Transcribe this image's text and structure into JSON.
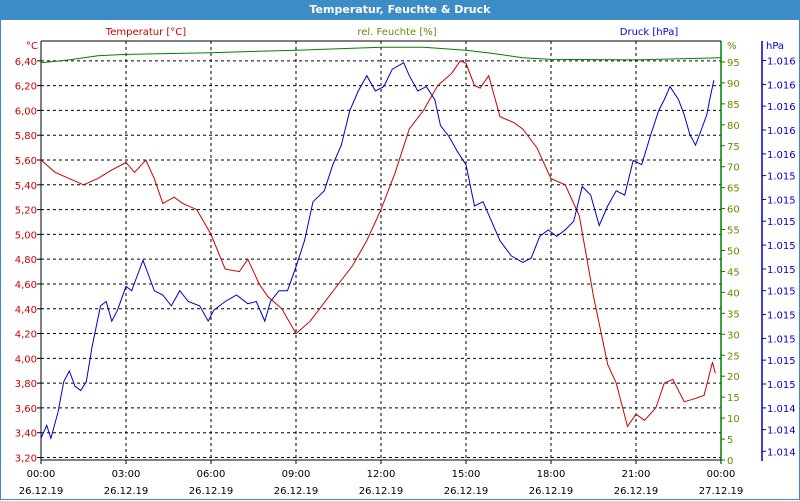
{
  "window": {
    "title": "Temperatur, Feuchte & Druck"
  },
  "colors": {
    "temp": "#cc0000",
    "hum": "#008000",
    "press": "#0000cc",
    "titlebar": "#3c8dc5"
  },
  "chart_data": {
    "type": "line",
    "title": "Temperatur, Feuchte & Druck",
    "grid": true,
    "axis_titles": {
      "temp": "Temperatur [°C]",
      "hum": "rel. Feuchte [%]",
      "press": "Druck [hPa]"
    },
    "unit_labels": {
      "temp": "°C",
      "hum": "%",
      "press": "hPa"
    },
    "xlim": [
      0,
      24
    ],
    "x_ticks": [
      {
        "h": 0,
        "time": "00:00",
        "date": "26.12.19"
      },
      {
        "h": 3,
        "time": "03:00",
        "date": "26.12.19"
      },
      {
        "h": 6,
        "time": "06:00",
        "date": "26.12.19"
      },
      {
        "h": 9,
        "time": "09:00",
        "date": "26.12.19"
      },
      {
        "h": 12,
        "time": "12:00",
        "date": "26.12.19"
      },
      {
        "h": 15,
        "time": "15:00",
        "date": "26.12.19"
      },
      {
        "h": 18,
        "time": "18:00",
        "date": "26.12.19"
      },
      {
        "h": 21,
        "time": "21:00",
        "date": "26.12.19"
      },
      {
        "h": 24,
        "time": "00:00",
        "date": "27.12.19"
      }
    ],
    "temp_axis": {
      "range": [
        3.18,
        6.56
      ],
      "ticks": [
        "6,40",
        "6,20",
        "6,00",
        "5,80",
        "5,60",
        "5,40",
        "5,20",
        "5,00",
        "4,80",
        "4,60",
        "4,40",
        "4,20",
        "4,00",
        "3,80",
        "3,60",
        "3,40",
        "3,20"
      ],
      "tick_values": [
        6.4,
        6.2,
        6.0,
        5.8,
        5.6,
        5.4,
        5.2,
        5.0,
        4.8,
        4.6,
        4.4,
        4.2,
        4.0,
        3.8,
        3.6,
        3.4,
        3.2
      ]
    },
    "hum_axis": {
      "range": [
        0,
        100
      ],
      "ticks": [
        "95",
        "90",
        "85",
        "80",
        "75",
        "70",
        "65",
        "60",
        "55",
        "50",
        "45",
        "40",
        "35",
        "30",
        "25",
        "20",
        "15",
        "10",
        "5",
        "0"
      ],
      "tick_values": [
        95,
        90,
        85,
        80,
        75,
        70,
        65,
        60,
        55,
        50,
        45,
        40,
        35,
        30,
        25,
        20,
        15,
        10,
        5,
        0
      ]
    },
    "press_axis": {
      "range": [
        1014.26,
        1016.19
      ],
      "ticks": [
        "1.016",
        "1.016",
        "1.016",
        "1.016",
        "1.016",
        "1.015",
        "1.015",
        "1.015",
        "1.015",
        "1.015",
        "1.015",
        "1.015",
        "1.015",
        "1.015",
        "1.015",
        "1.014",
        "1.014",
        "1.014"
      ],
      "tick_values": [
        1016.1,
        1015.99,
        1015.89,
        1015.78,
        1015.67,
        1015.57,
        1015.46,
        1015.36,
        1015.25,
        1015.14,
        1015.04,
        1014.93,
        1014.82,
        1014.72,
        1014.61,
        1014.5,
        1014.4,
        1014.3
      ]
    },
    "series": [
      {
        "name": "Temperatur [°C]",
        "axis": "temp",
        "x": [
          0,
          0.5,
          1,
          1.5,
          2,
          2.5,
          3,
          3.3,
          3.7,
          4,
          4.3,
          4.7,
          5,
          5.5,
          6,
          6.5,
          7,
          7.3,
          7.7,
          8,
          8.5,
          9,
          9.5,
          10,
          10.5,
          11,
          11.5,
          12,
          12.5,
          13,
          13.5,
          14,
          14.5,
          14.8,
          15,
          15.3,
          15.5,
          15.8,
          16.2,
          16.7,
          17,
          17.5,
          18,
          18.5,
          19,
          19.5,
          20,
          20.3,
          20.7,
          21,
          21.3,
          21.7,
          22,
          22.3,
          22.7,
          23,
          23.4,
          23.7,
          23.8
        ],
        "y": [
          5.6,
          5.5,
          5.45,
          5.4,
          5.45,
          5.52,
          5.58,
          5.5,
          5.6,
          5.45,
          5.25,
          5.3,
          5.25,
          5.2,
          5.0,
          4.72,
          4.7,
          4.8,
          4.6,
          4.5,
          4.4,
          4.2,
          4.3,
          4.45,
          4.6,
          4.75,
          4.95,
          5.2,
          5.5,
          5.85,
          6.0,
          6.2,
          6.3,
          6.4,
          6.38,
          6.2,
          6.18,
          6.28,
          5.95,
          5.9,
          5.85,
          5.7,
          5.45,
          5.4,
          5.15,
          4.5,
          3.95,
          3.8,
          3.45,
          3.55,
          3.5,
          3.6,
          3.8,
          3.83,
          3.65,
          3.67,
          3.7,
          3.97,
          3.88
        ]
      },
      {
        "name": "rel. Feuchte [%]",
        "axis": "hum",
        "x": [
          0,
          1,
          2,
          3,
          6,
          9,
          12,
          13.5,
          15,
          16,
          17,
          18,
          21,
          24
        ],
        "y": [
          94.8,
          95.5,
          96.5,
          96.8,
          97.2,
          97.8,
          98.5,
          98.5,
          97.8,
          97,
          96,
          95.6,
          95.5,
          96
        ]
      },
      {
        "name": "Druck [hPa]",
        "axis": "press",
        "x": [
          0,
          0.2,
          0.35,
          0.6,
          0.8,
          1,
          1.2,
          1.4,
          1.6,
          1.8,
          2.1,
          2.3,
          2.5,
          2.7,
          3,
          3.2,
          3.4,
          3.6,
          3.8,
          4,
          4.3,
          4.6,
          4.9,
          5.2,
          5.6,
          5.9,
          6.1,
          6.5,
          6.9,
          7.3,
          7.6,
          7.9,
          8.1,
          8.4,
          8.7,
          9,
          9.3,
          9.6,
          10,
          10.3,
          10.6,
          10.9,
          11.2,
          11.5,
          11.8,
          12.1,
          12.4,
          12.8,
          13,
          13.3,
          13.6,
          13.9,
          14.1,
          14.4,
          14.7,
          15,
          15.3,
          15.6,
          15.9,
          16.2,
          16.6,
          17,
          17.3,
          17.6,
          17.9,
          18.2,
          18.5,
          18.8,
          19.1,
          19.4,
          19.7,
          20,
          20.3,
          20.6,
          20.9,
          21.2,
          21.5,
          21.8,
          22,
          22.2,
          22.5,
          22.7,
          22.9,
          23.1,
          23.3,
          23.5,
          23.6,
          23.75
        ],
        "y": [
          1014.36,
          1014.42,
          1014.36,
          1014.48,
          1014.62,
          1014.67,
          1014.6,
          1014.58,
          1014.62,
          1014.78,
          1014.97,
          1014.99,
          1014.9,
          1014.95,
          1015.06,
          1015.04,
          1015.11,
          1015.18,
          1015.11,
          1015.04,
          1015.02,
          1014.97,
          1015.04,
          1014.99,
          1014.97,
          1014.9,
          1014.95,
          1014.99,
          1015.02,
          1014.98,
          1014.99,
          1014.9,
          1014.99,
          1015.04,
          1015.04,
          1015.15,
          1015.27,
          1015.45,
          1015.5,
          1015.62,
          1015.71,
          1015.87,
          1015.96,
          1016.03,
          1015.96,
          1015.98,
          1016.06,
          1016.09,
          1016.03,
          1015.96,
          1015.98,
          1015.92,
          1015.8,
          1015.75,
          1015.68,
          1015.62,
          1015.43,
          1015.45,
          1015.36,
          1015.27,
          1015.2,
          1015.17,
          1015.19,
          1015.29,
          1015.32,
          1015.29,
          1015.32,
          1015.36,
          1015.52,
          1015.48,
          1015.34,
          1015.43,
          1015.5,
          1015.48,
          1015.64,
          1015.62,
          1015.75,
          1015.87,
          1015.92,
          1015.98,
          1015.92,
          1015.85,
          1015.76,
          1015.71,
          1015.78,
          1015.85,
          1015.92,
          1016.01
        ]
      }
    ]
  }
}
